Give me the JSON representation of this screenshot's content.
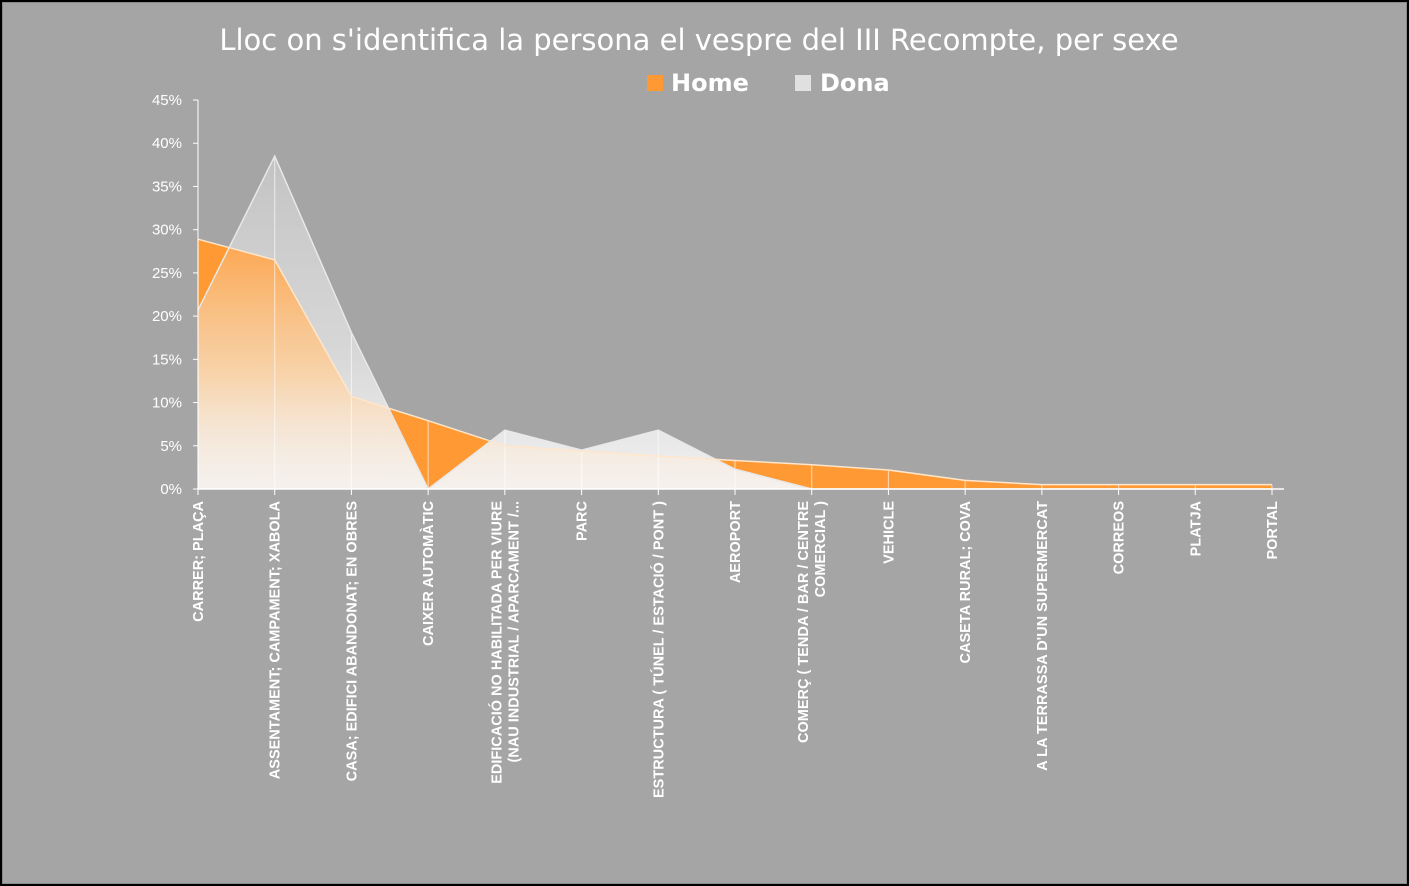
{
  "chart_data": {
    "type": "area",
    "title": "Lloc on s'identifica la persona el vespre del III Recompte, per sexe",
    "categories": [
      [
        "CARRER; PLAÇA"
      ],
      [
        "ASSENTAMENT; CAMPAMENT; XABOLA"
      ],
      [
        "CASA; EDIFICI ABANDONAT; EN OBRES"
      ],
      [
        "CAIXER AUTOMÀTIC"
      ],
      [
        "EDIFICACIÓ NO HABILITADA PER VIURE",
        "(NAU INDUSTRIAL / APARCAMENT /..."
      ],
      [
        "PARC"
      ],
      [
        "ESTRUCTURA ( TÚNEL / ESTACIÓ / PONT )"
      ],
      [
        "AEROPORT"
      ],
      [
        "COMERÇ ( TENDA / BAR / CENTRE",
        "COMERCIAL )"
      ],
      [
        "VEHICLE"
      ],
      [
        "CASETA RURAL; COVA"
      ],
      [
        "A LA TERRASSA D'UN SUPERMERCAT"
      ],
      [
        "CORREOS"
      ],
      [
        "PLATJA"
      ],
      [
        "PORTAL"
      ]
    ],
    "series": [
      {
        "name": "Home",
        "color": "#ff9933",
        "values": [
          28.9,
          26.5,
          10.7,
          7.9,
          5.0,
          4.4,
          3.8,
          3.3,
          2.8,
          2.2,
          1.0,
          0.5,
          0.5,
          0.5,
          0.5
        ]
      },
      {
        "name": "Dona",
        "color": "#d9d9d9",
        "values": [
          20.7,
          38.5,
          18.1,
          0,
          6.8,
          4.5,
          6.8,
          2.3,
          0,
          0,
          0,
          0,
          0,
          0,
          0
        ]
      }
    ],
    "y_ticks": [
      "0%",
      "5%",
      "10%",
      "15%",
      "20%",
      "25%",
      "30%",
      "35%",
      "40%",
      "45%"
    ],
    "ylim": [
      0,
      45
    ],
    "legend_position": "top",
    "grid": false
  }
}
